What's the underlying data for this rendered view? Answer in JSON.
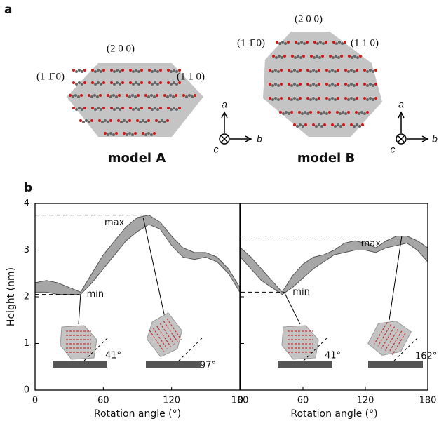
{
  "panel_a": {
    "label": "a",
    "models": [
      {
        "name": "model A",
        "facets": [
          "(2 0 0)",
          "(1 1̄ 0)",
          "(1 1 0)"
        ]
      },
      {
        "name": "model B",
        "facets": [
          "(2 0 0)",
          "(1 1̄ 0)",
          "(1 1 0)"
        ]
      }
    ],
    "axes": [
      "a",
      "b",
      "c"
    ]
  },
  "panel_b": {
    "label": "b"
  },
  "chart_data": [
    {
      "type": "range",
      "xlabel": "Rotation angle (°)",
      "ylabel": "Height (nm)",
      "color": "#a6a6a6",
      "x": [
        0,
        10,
        20,
        30,
        40,
        50,
        60,
        70,
        80,
        90,
        100,
        110,
        120,
        130,
        140,
        150,
        160,
        170,
        180
      ],
      "upper": [
        2.3,
        2.35,
        2.3,
        2.2,
        2.1,
        2.5,
        2.9,
        3.2,
        3.5,
        3.7,
        3.75,
        3.6,
        3.3,
        3.05,
        2.95,
        2.95,
        2.85,
        2.6,
        2.2
      ],
      "lower": [
        2.1,
        2.1,
        2.05,
        2.05,
        2.05,
        2.3,
        2.6,
        2.9,
        3.2,
        3.4,
        3.55,
        3.45,
        3.1,
        2.85,
        2.8,
        2.85,
        2.75,
        2.5,
        2.1
      ],
      "xlim": [
        0,
        180
      ],
      "xticks": [
        0,
        60,
        120,
        180
      ],
      "ylim": [
        0,
        4
      ],
      "yticks": [
        0,
        1,
        2,
        3,
        4
      ],
      "annotations": [
        {
          "label": "max",
          "value": 3.75,
          "x": 97
        },
        {
          "label": "min",
          "value": 2.05,
          "x": 38
        }
      ],
      "insets": [
        {
          "angle_label": "41°"
        },
        {
          "angle_label": "97°"
        }
      ]
    },
    {
      "type": "range",
      "xlabel": "Rotation angle (°)",
      "color": "#a6a6a6",
      "x": [
        0,
        10,
        20,
        30,
        40,
        50,
        60,
        70,
        80,
        90,
        100,
        110,
        120,
        130,
        140,
        150,
        160,
        170,
        180
      ],
      "upper": [
        3.05,
        2.85,
        2.6,
        2.35,
        2.1,
        2.45,
        2.7,
        2.85,
        2.9,
        3.0,
        3.15,
        3.2,
        3.15,
        3.05,
        3.2,
        3.3,
        3.3,
        3.2,
        3.05
      ],
      "lower": [
        2.85,
        2.6,
        2.35,
        2.2,
        2.05,
        2.2,
        2.4,
        2.6,
        2.75,
        2.9,
        2.95,
        3.0,
        3.0,
        2.95,
        3.05,
        3.1,
        3.15,
        3.0,
        2.75
      ],
      "xlim": [
        0,
        180
      ],
      "xticks": [
        0,
        60,
        120,
        180
      ],
      "ylim": [
        0,
        4
      ],
      "yticks": [
        0,
        1,
        2,
        3,
        4
      ],
      "annotations": [
        {
          "label": "max",
          "value": 3.3,
          "x": 155
        },
        {
          "label": "min",
          "value": 2.1,
          "x": 42
        }
      ],
      "insets": [
        {
          "angle_label": "41°"
        },
        {
          "angle_label": "162°"
        }
      ]
    }
  ]
}
